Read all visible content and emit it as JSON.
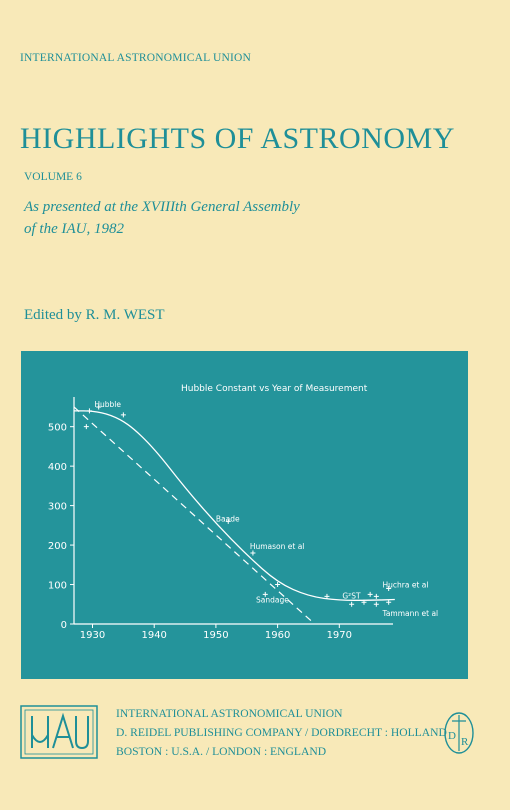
{
  "series": "INTERNATIONAL ASTRONOMICAL UNION",
  "title": "HIGHLIGHTS OF ASTRONOMY",
  "volume": "VOLUME 6",
  "subtitle_line1": "As presented at the XVIIIth General Assembly",
  "subtitle_line2": "of the IAU, 1982",
  "editor": "Edited by R. M. WEST",
  "publisher": {
    "line1": "INTERNATIONAL ASTRONOMICAL UNION",
    "line2": "D. REIDEL PUBLISHING COMPANY / DORDRECHT : HOLLAND",
    "line3": "BOSTON : U.S.A. / LONDON : ENGLAND"
  },
  "logo_text": "IAU",
  "seal_text": "DR",
  "colors": {
    "background": "#f8e9b8",
    "teal": "#24949b",
    "text": "#1f8f98",
    "white": "#ffffff"
  },
  "chart_data": {
    "type": "scatter",
    "title": "Hubble Constant vs Year of Measurement",
    "xlabel": "",
    "ylabel": "",
    "xlim": [
      1927,
      1980
    ],
    "ylim": [
      0,
      560
    ],
    "x_ticks": [
      1930,
      1940,
      1950,
      1960,
      1970
    ],
    "y_ticks": [
      0,
      100,
      200,
      300,
      400,
      500
    ],
    "points": [
      {
        "x": 1929,
        "y": 500
      },
      {
        "x": 1929.5,
        "y": 540
      },
      {
        "x": 1931,
        "y": 550
      },
      {
        "x": 1935,
        "y": 530
      },
      {
        "x": 1952,
        "y": 260
      },
      {
        "x": 1956,
        "y": 180
      },
      {
        "x": 1958,
        "y": 75
      },
      {
        "x": 1960,
        "y": 100
      },
      {
        "x": 1968,
        "y": 70
      },
      {
        "x": 1972,
        "y": 50
      },
      {
        "x": 1974,
        "y": 55
      },
      {
        "x": 1975,
        "y": 75
      },
      {
        "x": 1976,
        "y": 50
      },
      {
        "x": 1976,
        "y": 70
      },
      {
        "x": 1978,
        "y": 55
      },
      {
        "x": 1978,
        "y": 90
      }
    ],
    "annotations": [
      {
        "text": "Hubble",
        "x": 1930.3,
        "y": 550
      },
      {
        "text": "Baade",
        "x": 1950,
        "y": 260
      },
      {
        "text": "Humason et al",
        "x": 1955.5,
        "y": 190
      },
      {
        "text": "Sandage",
        "x": 1956.5,
        "y": 55
      },
      {
        "text": "G²ST",
        "x": 1970.5,
        "y": 65
      },
      {
        "text": "Huchra et al",
        "x": 1977,
        "y": 92
      },
      {
        "text": "Tammann et al",
        "x": 1977,
        "y": 20
      }
    ],
    "curve": [
      [
        1927,
        540
      ],
      [
        1930,
        540
      ],
      [
        1933,
        530
      ],
      [
        1936,
        505
      ],
      [
        1940,
        445
      ],
      [
        1945,
        345
      ],
      [
        1950,
        255
      ],
      [
        1955,
        175
      ],
      [
        1960,
        105
      ],
      [
        1965,
        70
      ],
      [
        1970,
        60
      ],
      [
        1975,
        60
      ],
      [
        1979,
        62
      ]
    ],
    "trend_line": [
      [
        1927,
        550
      ],
      [
        1966,
        0
      ]
    ],
    "grid": false,
    "legend": "none"
  }
}
